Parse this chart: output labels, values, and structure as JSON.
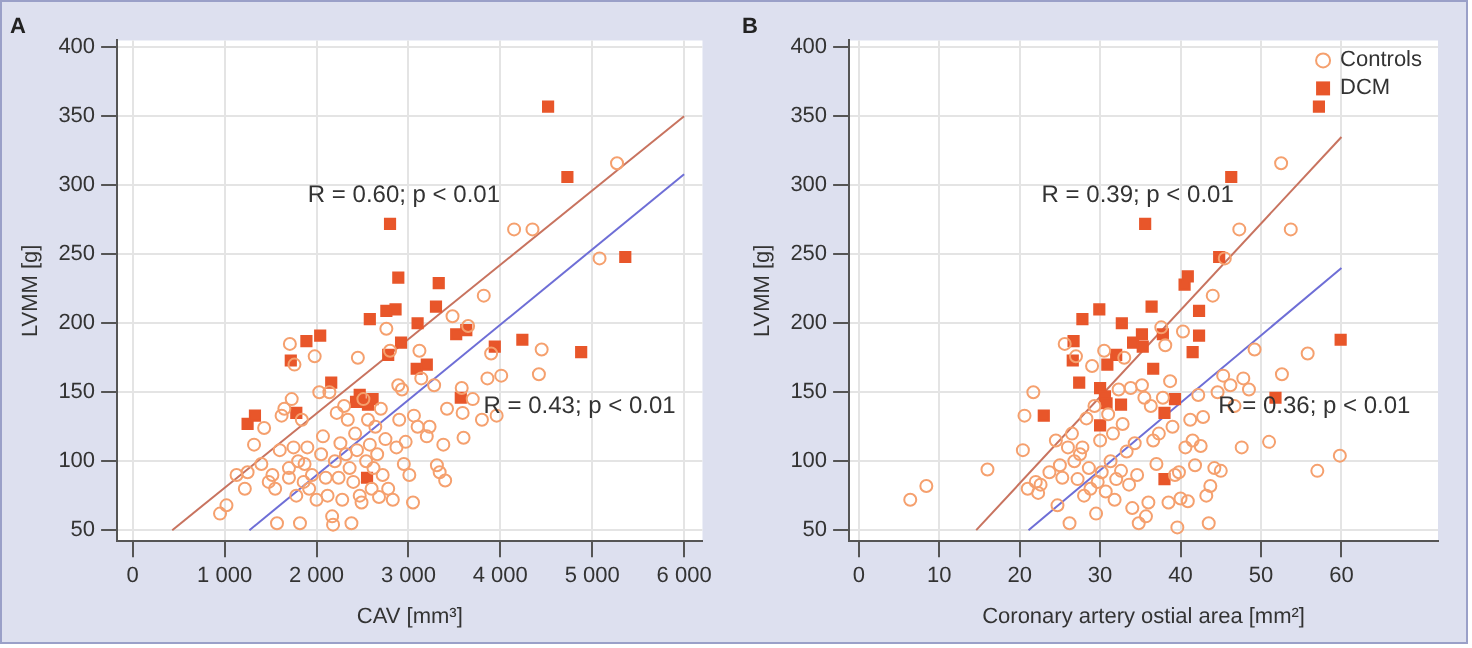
{
  "chart_data": [
    {
      "type": "scatter",
      "title": "A",
      "xlabel": "CAV [mm³]",
      "ylabel": "LVMM [g]",
      "xlim": [
        -170,
        6200
      ],
      "ylim": [
        42,
        405
      ],
      "xticks": [
        0,
        {
          "value": 1000,
          "label": "1 000"
        },
        {
          "value": 2000,
          "label": "2 000"
        },
        {
          "value": 3000,
          "label": "3 000"
        },
        {
          "value": 4000,
          "label": "4 000"
        },
        {
          "value": 5000,
          "label": "5 000"
        },
        {
          "value": 6000,
          "label": "6 000"
        }
      ],
      "yticks": [
        50,
        100,
        150,
        200,
        250,
        300,
        350,
        400
      ],
      "grid": true,
      "legend": false,
      "annotations": [
        "R = 0.60; p < 0.01",
        "R = 0.43; p < 0.01"
      ],
      "series": [
        {
          "type": "scatter",
          "marker": "circle",
          "color": "#f5a06e",
          "x": [
            950,
            1020,
            1130,
            1220,
            1250,
            1320,
            1400,
            1430,
            1480,
            1520,
            1550,
            1570,
            1600,
            1620,
            1650,
            1700,
            1700,
            1710,
            1730,
            1750,
            1760,
            1780,
            1800,
            1820,
            1840,
            1860,
            1870,
            1900,
            1920,
            1950,
            1980,
            2000,
            2030,
            2050,
            2070,
            2100,
            2120,
            2140,
            2170,
            2180,
            2200,
            2220,
            2240,
            2260,
            2280,
            2300,
            2320,
            2340,
            2360,
            2380,
            2400,
            2420,
            2440,
            2450,
            2470,
            2490,
            2510,
            2540,
            2560,
            2580,
            2600,
            2620,
            2640,
            2660,
            2680,
            2700,
            2720,
            2750,
            2760,
            2780,
            2800,
            2830,
            2870,
            2890,
            2900,
            2930,
            2950,
            2970,
            3010,
            3050,
            3060,
            3100,
            3120,
            3140,
            3200,
            3230,
            3280,
            3310,
            3340,
            3380,
            3400,
            3420,
            3480,
            3580,
            3590,
            3600,
            3650,
            3700,
            3800,
            3820,
            3860,
            3900,
            3960,
            4010,
            4150,
            4350,
            4420,
            4450,
            5080,
            5270
          ],
          "values": [
            62,
            68,
            90,
            80,
            92,
            112,
            98,
            124,
            85,
            90,
            80,
            55,
            108,
            133,
            138,
            95,
            88,
            185,
            145,
            110,
            170,
            75,
            100,
            55,
            130,
            85,
            98,
            110,
            80,
            90,
            176,
            72,
            150,
            105,
            118,
            88,
            75,
            150,
            60,
            54,
            100,
            135,
            88,
            113,
            72,
            140,
            105,
            130,
            95,
            55,
            85,
            120,
            108,
            175,
            75,
            70,
            145,
            100,
            130,
            112,
            80,
            95,
            125,
            105,
            74,
            138,
            90,
            116,
            196,
            80,
            180,
            72,
            110,
            155,
            130,
            152,
            98,
            114,
            90,
            70,
            133,
            125,
            180,
            160,
            118,
            125,
            155,
            97,
            92,
            112,
            86,
            138,
            205,
            153,
            135,
            117,
            198,
            145,
            130,
            220,
            160,
            178,
            133,
            162,
            268,
            268,
            163,
            181,
            247,
            316
          ]
        },
        {
          "type": "scatter",
          "marker": "square",
          "color": "#e8562a",
          "x": [
            1250,
            1330,
            1780,
            1720,
            1890,
            2040,
            2160,
            2430,
            2470,
            2560,
            2610,
            2580,
            2780,
            2800,
            2890,
            2760,
            2860,
            2920,
            3090,
            3100,
            3200,
            3300,
            3330,
            3520,
            3630,
            3570,
            3940,
            4240,
            4520,
            4730,
            4880,
            5360,
            2550
          ],
          "values": [
            127,
            133,
            135,
            173,
            187,
            191,
            157,
            143,
            148,
            141,
            145,
            203,
            177,
            272,
            233,
            209,
            210,
            186,
            167,
            200,
            170,
            212,
            229,
            192,
            195,
            146,
            183,
            188,
            357,
            306,
            179,
            248,
            88
          ]
        },
        {
          "type": "line",
          "marker": "none",
          "line_style": "solid",
          "color": "#c8735f",
          "x": [
            430,
            6000
          ],
          "values": [
            50,
            350
          ]
        },
        {
          "type": "line",
          "marker": "none",
          "line_style": "solid",
          "color": "#6e6ed6",
          "x": [
            1270,
            6000
          ],
          "values": [
            50,
            308
          ]
        }
      ]
    },
    {
      "type": "scatter",
      "title": "B",
      "xlabel": "Coronary artery ostial area [mm²]",
      "ylabel": "LVMM [g]",
      "xlim": [
        -1.2,
        72
      ],
      "ylim": [
        42,
        405
      ],
      "xticks": [
        0,
        10,
        20,
        30,
        40,
        50,
        60
      ],
      "yticks": [
        50,
        100,
        150,
        200,
        250,
        300,
        350,
        400
      ],
      "grid": true,
      "legend": "top right",
      "annotations": [
        "R = 0.39; p < 0.01",
        "R = 0.36; p < 0.01"
      ],
      "series": [
        {
          "type": "scatter",
          "name": "Controls",
          "marker": "circle",
          "color": "#f5a06e",
          "x": [
            6.4,
            8.4,
            16,
            20.4,
            20.6,
            21,
            21.7,
            22,
            22.3,
            22.6,
            23.7,
            24.5,
            24.7,
            25,
            25.3,
            25.6,
            26,
            26.2,
            26.5,
            26.8,
            27,
            27.2,
            27.5,
            27.8,
            28,
            28.3,
            28.6,
            28.8,
            29,
            29.3,
            29.5,
            29.7,
            30,
            30.2,
            30.5,
            30.7,
            31,
            31.3,
            31.6,
            31.8,
            32,
            32.3,
            32.6,
            32.8,
            33,
            33.3,
            33.6,
            33.8,
            34,
            34.3,
            34.6,
            34.8,
            35.2,
            35.5,
            35.7,
            36,
            36.3,
            36.6,
            37,
            37.3,
            37.6,
            37.8,
            38.1,
            38.5,
            38.7,
            39,
            39.3,
            39.6,
            39.8,
            40,
            40.3,
            40.6,
            40.9,
            41.2,
            41.5,
            41.8,
            42.2,
            42.5,
            42.8,
            43.2,
            43.5,
            43.7,
            44,
            44.2,
            44.6,
            45,
            45.3,
            45.5,
            46.2,
            46.7,
            47.3,
            47.6,
            47.8,
            48.5,
            49.2,
            51,
            52.6,
            52.5,
            53.7,
            55.8,
            57,
            59.8
          ],
          "values": [
            72,
            82,
            94,
            108,
            133,
            80,
            150,
            85,
            77,
            83,
            92,
            115,
            68,
            97,
            88,
            185,
            110,
            55,
            120,
            100,
            176,
            87,
            105,
            110,
            75,
            131,
            95,
            80,
            169,
            140,
            62,
            85,
            115,
            92,
            180,
            78,
            134,
            100,
            120,
            72,
            87,
            152,
            93,
            127,
            175,
            107,
            83,
            153,
            66,
            113,
            90,
            55,
            155,
            146,
            60,
            70,
            140,
            115,
            98,
            120,
            197,
            146,
            184,
            70,
            158,
            125,
            90,
            52,
            92,
            73,
            194,
            110,
            71,
            130,
            115,
            97,
            148,
            111,
            132,
            75,
            55,
            82,
            220,
            95,
            150,
            93,
            162,
            247,
            155,
            140,
            268,
            110,
            160,
            152,
            181,
            114,
            163,
            316,
            268,
            178,
            93,
            104
          ]
        },
        {
          "type": "scatter",
          "name": "DCM",
          "marker": "square",
          "color": "#e8562a",
          "x": [
            23,
            26.7,
            26.6,
            27.4,
            27.8,
            29.9,
            30,
            30,
            30.6,
            30.8,
            30.9,
            32,
            32.6,
            32.7,
            34.1,
            35.2,
            35.3,
            35.6,
            36.4,
            36.6,
            37.8,
            38,
            38,
            39.3,
            40.5,
            40.9,
            41.5,
            42.3,
            42.3,
            44.8,
            46.3,
            51.8,
            57.2,
            59.9
          ],
          "values": [
            133,
            187,
            173,
            157,
            203,
            210,
            153,
            126,
            147,
            142,
            170,
            177,
            141,
            200,
            186,
            192,
            183,
            272,
            212,
            167,
            192,
            135,
            87,
            145,
            228,
            234,
            179,
            209,
            191,
            248,
            306,
            146,
            357,
            188
          ]
        },
        {
          "type": "line",
          "marker": "none",
          "line_style": "solid",
          "color": "#c8735f",
          "x": [
            14.6,
            60
          ],
          "values": [
            50,
            335
          ]
        },
        {
          "type": "line",
          "marker": "none",
          "line_style": "solid",
          "color": "#6e6ed6",
          "x": [
            21.1,
            60
          ],
          "values": [
            50,
            240
          ]
        }
      ]
    }
  ]
}
